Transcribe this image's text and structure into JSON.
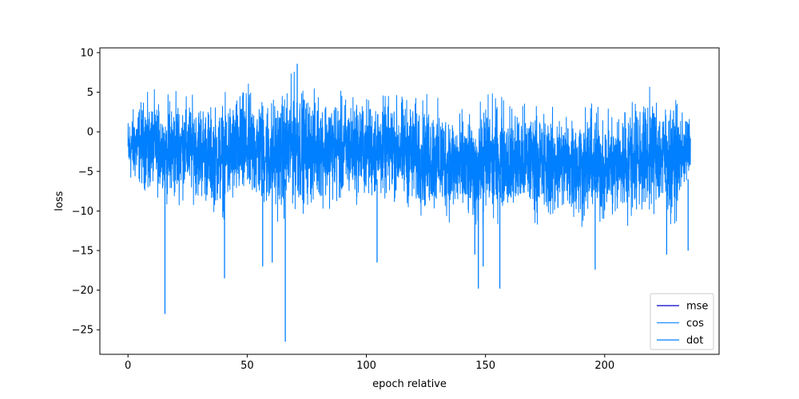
{
  "chart_data": {
    "type": "line",
    "title": "",
    "xlabel": "epoch relative",
    "ylabel": "loss",
    "xlim": [
      -11.8,
      248.0
    ],
    "ylim": [
      -28.1,
      10.6
    ],
    "xticks": [
      0,
      50,
      100,
      150,
      200
    ],
    "yticks": [
      10,
      5,
      0,
      -5,
      -10,
      -15,
      -20,
      -25
    ],
    "grid": false,
    "legend_position": "lower-right",
    "x_range": [
      0,
      236
    ],
    "series": [
      {
        "name": "mse",
        "color": "#0000cd",
        "values": []
      },
      {
        "name": "cos",
        "color": "#1e90ff",
        "values": []
      },
      {
        "name": "dot",
        "color": "#007fff",
        "envelope_x": [
          0,
          5,
          10,
          15,
          20,
          25,
          30,
          35,
          40,
          45,
          50,
          55,
          60,
          65,
          70,
          75,
          80,
          85,
          90,
          95,
          100,
          105,
          110,
          115,
          120,
          125,
          130,
          135,
          140,
          145,
          150,
          155,
          160,
          165,
          170,
          175,
          180,
          185,
          190,
          195,
          200,
          205,
          210,
          215,
          220,
          225,
          230,
          236
        ],
        "envelope_upper": [
          2.5,
          4.5,
          5.5,
          5.0,
          5.5,
          5.0,
          5.0,
          4.0,
          5.0,
          5.5,
          6.5,
          5.5,
          5.5,
          6.0,
          8.5,
          5.5,
          6.0,
          5.5,
          5.5,
          5.5,
          5.0,
          5.0,
          5.0,
          5.5,
          5.0,
          5.0,
          4.5,
          4.0,
          3.5,
          2.0,
          6.0,
          5.0,
          4.5,
          4.0,
          4.5,
          3.5,
          4.0,
          3.5,
          3.5,
          4.0,
          3.5,
          4.0,
          5.0,
          5.0,
          6.0,
          5.0,
          5.0,
          1.5
        ],
        "envelope_lower": [
          -8.5,
          -9.0,
          -10.5,
          -11.5,
          -11.0,
          -10.5,
          -11.0,
          -12.0,
          -13.0,
          -12.0,
          -12.0,
          -12.0,
          -13.0,
          -13.5,
          -12.5,
          -12.0,
          -11.5,
          -11.5,
          -12.0,
          -11.0,
          -11.0,
          -11.0,
          -11.0,
          -11.5,
          -12.5,
          -13.0,
          -13.0,
          -13.5,
          -14.0,
          -14.0,
          -14.0,
          -13.0,
          -13.0,
          -13.5,
          -13.0,
          -14.0,
          -13.5,
          -13.0,
          -14.0,
          -13.5,
          -14.0,
          -14.0,
          -13.5,
          -13.0,
          -12.5,
          -13.0,
          -13.5,
          -7.0
        ],
        "spikes": [
          [
            15.5,
            -23.0
          ],
          [
            40.5,
            -18.5
          ],
          [
            66,
            -26.5
          ],
          [
            71,
            8.6
          ],
          [
            56.5,
            -17.0
          ],
          [
            60.5,
            -16.5
          ],
          [
            104.5,
            -16.5
          ],
          [
            147,
            -19.8
          ],
          [
            149,
            -17.0
          ],
          [
            156,
            -19.8
          ],
          [
            196,
            -17.4
          ],
          [
            145.5,
            -15.5
          ],
          [
            235,
            -15.0
          ],
          [
            226,
            -15.5
          ]
        ]
      }
    ]
  }
}
